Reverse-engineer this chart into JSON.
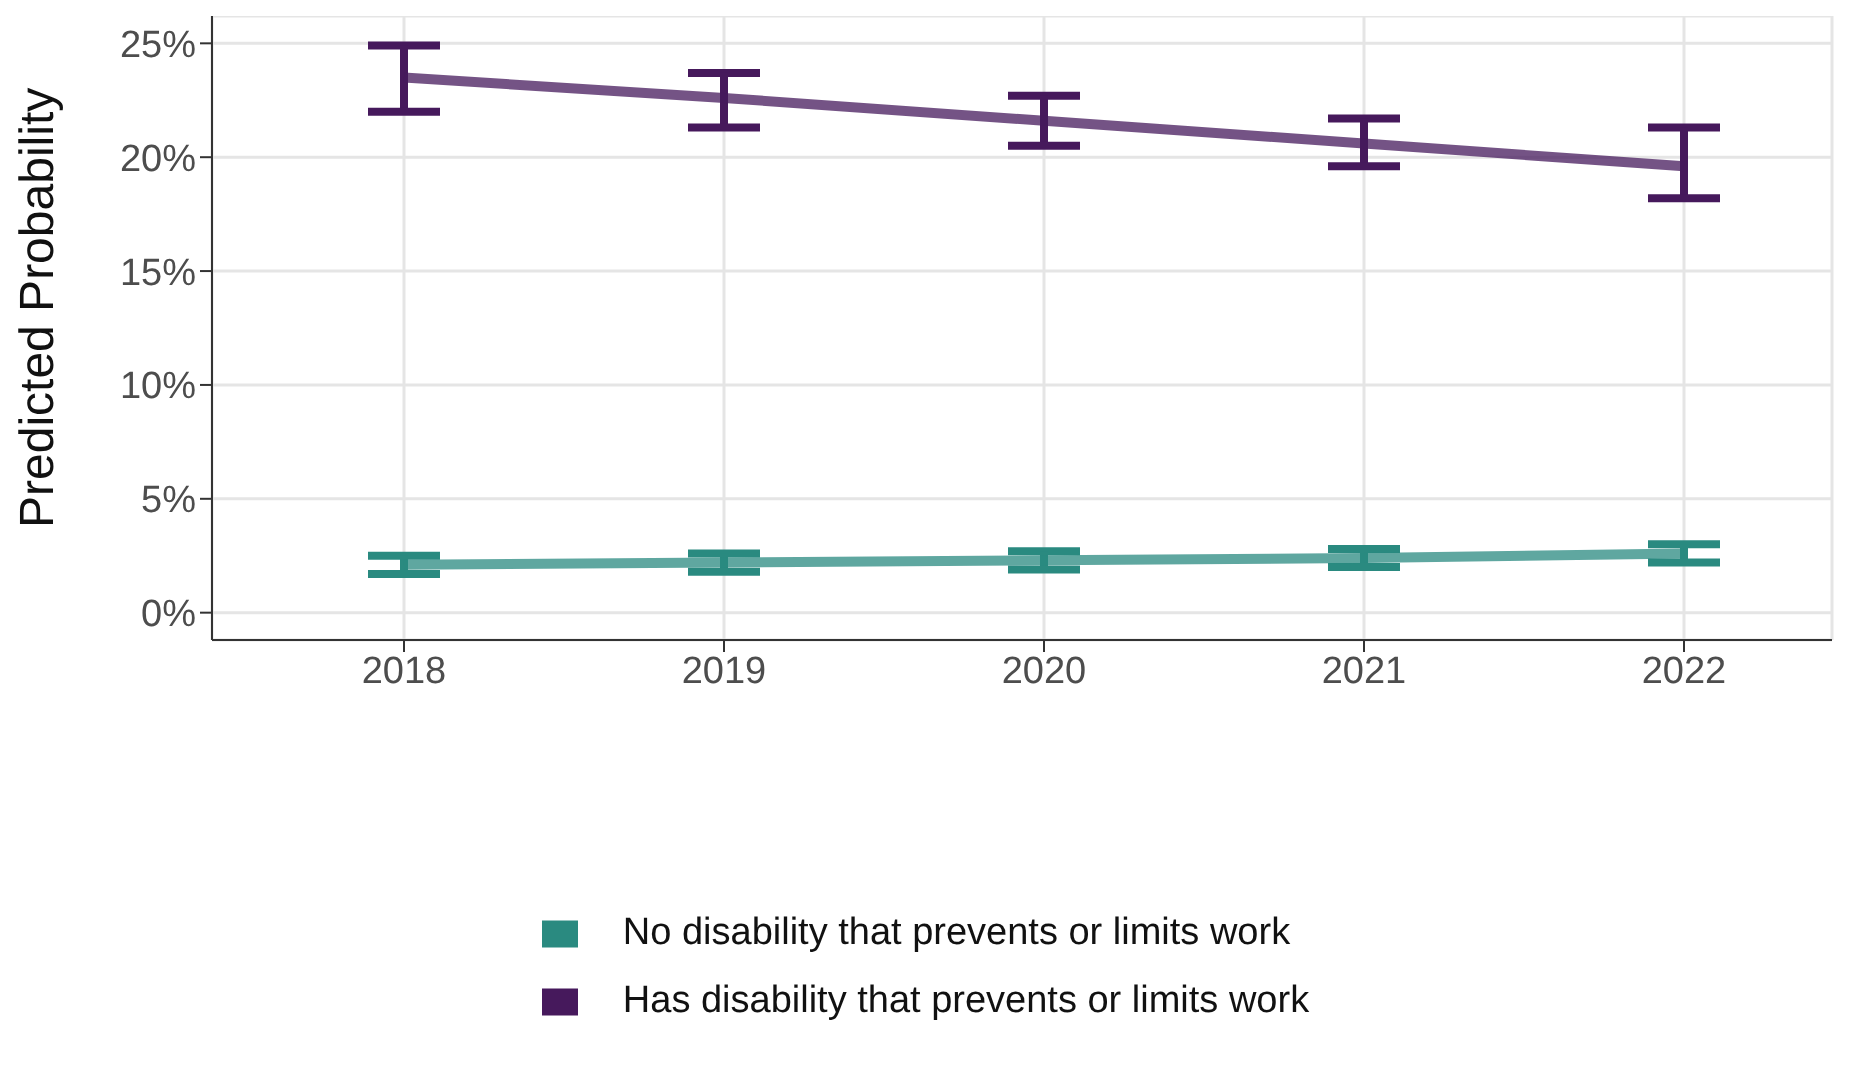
{
  "chart_data": {
    "type": "line",
    "ylabel": "Predicted Probability",
    "categories": [
      "2018",
      "2019",
      "2020",
      "2021",
      "2022"
    ],
    "series": [
      {
        "name": "No disability that prevents or limits work",
        "color": "#2a8a80",
        "values": [
          2.1,
          2.2,
          2.3,
          2.4,
          2.6
        ],
        "errors": [
          [
            1.7,
            2.5
          ],
          [
            1.8,
            2.6
          ],
          [
            1.9,
            2.7
          ],
          [
            2.0,
            2.8
          ],
          [
            2.2,
            3.0
          ]
        ]
      },
      {
        "name": "Has disability that prevents or limits work",
        "color": "#46195c",
        "values": [
          23.5,
          22.6,
          21.6,
          20.6,
          19.6
        ],
        "errors": [
          [
            22.0,
            24.9
          ],
          [
            21.3,
            23.7
          ],
          [
            20.5,
            22.7
          ],
          [
            19.6,
            21.7
          ],
          [
            18.2,
            21.3
          ]
        ]
      }
    ],
    "ylim": [
      -1.2,
      26.2
    ],
    "yticks": [
      {
        "value": 0,
        "label": "0%"
      },
      {
        "value": 5,
        "label": "5%"
      },
      {
        "value": 10,
        "label": "10%"
      },
      {
        "value": 15,
        "label": "15%"
      },
      {
        "value": 20,
        "label": "20%"
      },
      {
        "value": 25,
        "label": "25%"
      }
    ],
    "grid": true,
    "legend": "bottom",
    "marker": "none",
    "line_style": "solid"
  }
}
